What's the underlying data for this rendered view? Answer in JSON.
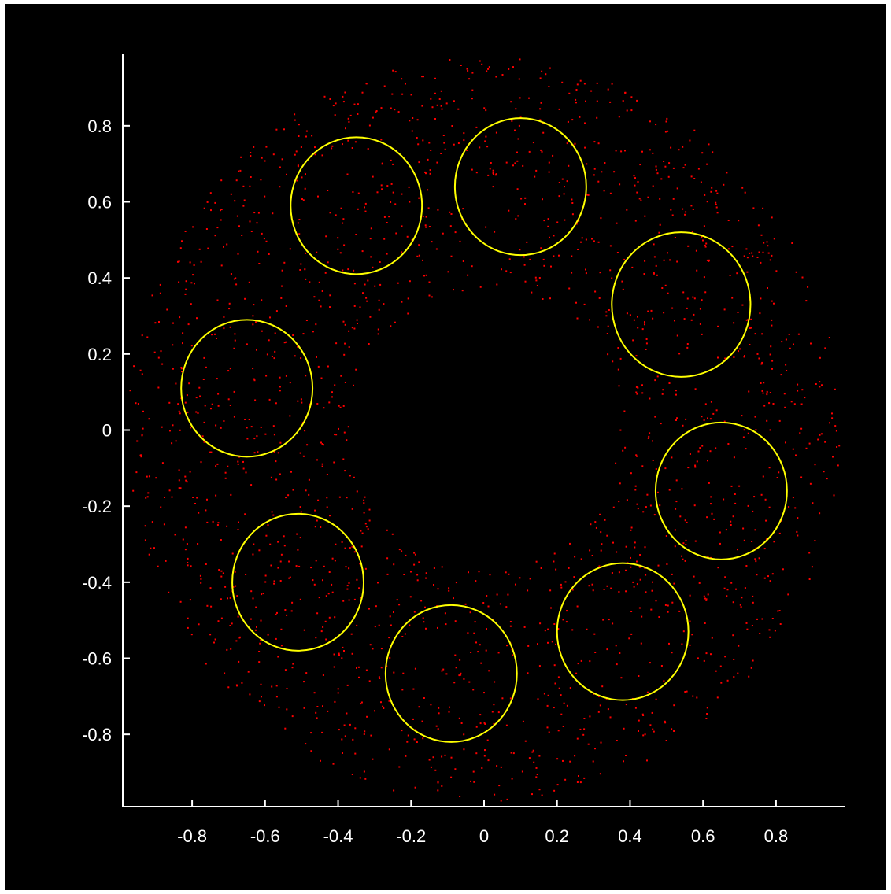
{
  "colors": {
    "background": "#000000",
    "axes": "#ffffff",
    "points": "#ff0000",
    "circles": "#ffff00"
  },
  "chart_data": {
    "type": "scatter",
    "title": "",
    "xlabel": "",
    "ylabel": "",
    "xlim": [
      -0.99,
      0.99
    ],
    "ylim": [
      -0.99,
      0.99
    ],
    "grid": false,
    "legend": "none",
    "x_ticks": [
      -0.8,
      -0.6,
      -0.4,
      -0.2,
      0,
      0.2,
      0.4,
      0.6,
      0.8
    ],
    "x_tick_labels": [
      "-0.8",
      "-0.6",
      "-0.4",
      "-0.2",
      "0",
      "0.2",
      "0.4",
      "0.6",
      "0.8"
    ],
    "y_ticks": [
      0.8,
      0.6,
      0.4,
      0.2,
      0,
      -0.2,
      -0.4,
      -0.6,
      -0.8
    ],
    "y_tick_labels": [
      "0.8",
      "0.6",
      "0.4",
      "0.2",
      "0",
      "-0.2",
      "-0.4",
      "-0.6",
      "-0.8"
    ],
    "point_distribution": {
      "shape": "annulus",
      "inner_radius": 0.37,
      "outer_radius": 0.98,
      "count": 2000,
      "color": "#ff0000"
    },
    "circles": [
      {
        "cx": 0.1,
        "cy": 0.64,
        "r": 0.18
      },
      {
        "cx": -0.35,
        "cy": 0.59,
        "r": 0.18
      },
      {
        "cx": 0.54,
        "cy": 0.33,
        "r": 0.19
      },
      {
        "cx": -0.65,
        "cy": 0.11,
        "r": 0.18
      },
      {
        "cx": 0.65,
        "cy": -0.16,
        "r": 0.18
      },
      {
        "cx": -0.51,
        "cy": -0.4,
        "r": 0.18
      },
      {
        "cx": 0.38,
        "cy": -0.53,
        "r": 0.18
      },
      {
        "cx": -0.09,
        "cy": -0.64,
        "r": 0.18
      }
    ]
  }
}
